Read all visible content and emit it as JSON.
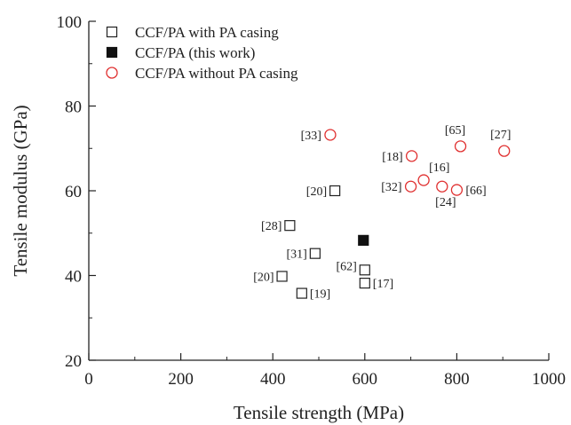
{
  "chart_data": {
    "type": "scatter",
    "xlabel": "Tensile strength (MPa)",
    "ylabel": "Tensile modulus (GPa)",
    "xlim": [
      0,
      1000
    ],
    "ylim": [
      20,
      100
    ],
    "xticks": [
      0,
      200,
      400,
      600,
      800,
      1000
    ],
    "yticks": [
      20,
      40,
      60,
      80,
      100
    ],
    "grid": false,
    "legend_position": "top-left",
    "series": [
      {
        "name": "CCF/PA with PA casing",
        "marker": "square-open",
        "color": "#222222",
        "points": [
          {
            "x": 535,
            "y": 60,
            "label": "[20]"
          },
          {
            "x": 437,
            "y": 51.8,
            "label": "[28]"
          },
          {
            "x": 492,
            "y": 45.2,
            "label": "[31]"
          },
          {
            "x": 600,
            "y": 41.3,
            "label": "[62]"
          },
          {
            "x": 420,
            "y": 39.8,
            "label": "[20]"
          },
          {
            "x": 600,
            "y": 38.2,
            "label": "[17]"
          },
          {
            "x": 463,
            "y": 35.8,
            "label": "[19]"
          }
        ]
      },
      {
        "name": "CCF/PA (this work)",
        "marker": "square-filled",
        "color": "#111111",
        "points": [
          {
            "x": 597,
            "y": 48.3
          }
        ]
      },
      {
        "name": "CCF/PA without PA casing",
        "marker": "circle-open",
        "color": "#e03030",
        "points": [
          {
            "x": 525,
            "y": 73.2,
            "label": "[33]"
          },
          {
            "x": 702,
            "y": 68.2,
            "label": "[18]"
          },
          {
            "x": 728,
            "y": 62.5,
            "label": "[16]"
          },
          {
            "x": 700,
            "y": 61.0,
            "label": "[32]"
          },
          {
            "x": 768,
            "y": 61.0,
            "label": "[24]"
          },
          {
            "x": 800,
            "y": 60.2,
            "label": "[66]"
          },
          {
            "x": 808,
            "y": 70.5,
            "label": "[65]"
          },
          {
            "x": 903,
            "y": 69.4,
            "label": "[27]"
          }
        ]
      }
    ]
  }
}
